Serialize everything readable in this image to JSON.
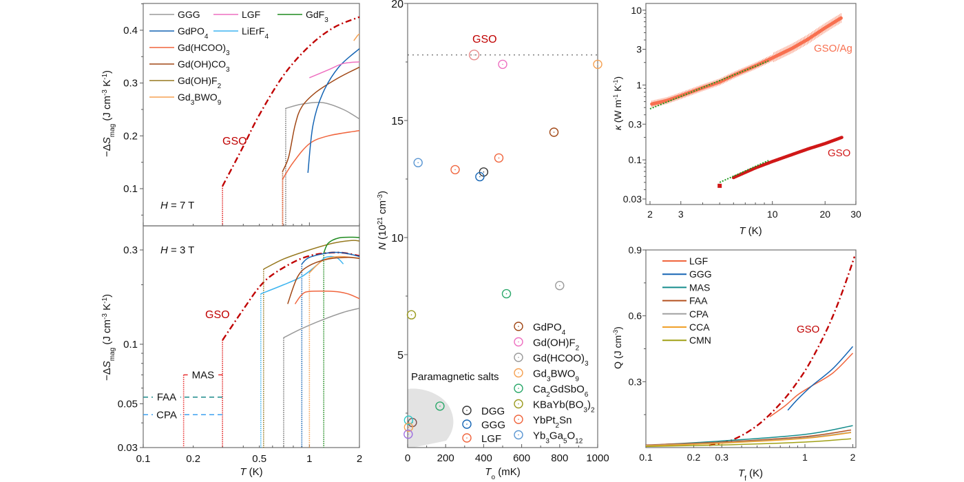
{
  "chart_data": [
    {
      "id": "entropy-7T",
      "type": "line",
      "title": "",
      "annotation": "H = 7 T",
      "xlabel": "T (K)",
      "ylabel": "-ΔS_mag (J cm^-3 K^-1)",
      "xscale": "log",
      "yscale": "linear",
      "xlim": [
        0.1,
        2
      ],
      "ylim": [
        0.03,
        0.45
      ],
      "yticks": [
        0.1,
        0.2,
        0.3,
        0.4
      ],
      "legend_position": "top-left",
      "legend": [
        {
          "name": "GGG",
          "color": "#999999"
        },
        {
          "name": "LGF",
          "color": "#ee6ec0"
        },
        {
          "name": "GdF3",
          "color": "#1e8a1e"
        },
        {
          "name": "GdPO4",
          "color": "#1464b4"
        },
        {
          "name": "LiErF4",
          "color": "#3cb4f0"
        },
        {
          "name": "Gd(HCOO)3",
          "color": "#f0643c"
        },
        {
          "name": "Gd(OH)CO3",
          "color": "#a04614"
        },
        {
          "name": "Gd(OH)F2",
          "color": "#96781e"
        },
        {
          "name": "Gd3BWO9",
          "color": "#f5a050"
        }
      ],
      "series": [
        {
          "name": "GSO",
          "color": "#c00000",
          "style": "dashdot",
          "x": [
            0.3,
            0.4,
            0.5,
            0.7,
            1.0,
            1.4,
            2.0
          ],
          "y": [
            0.105,
            0.18,
            0.24,
            0.315,
            0.37,
            0.405,
            0.425
          ],
          "cutoff_x": 0.3
        },
        {
          "name": "GGG",
          "color": "#999999",
          "style": "solid",
          "x": [
            0.72,
            0.9,
            1.2,
            1.6,
            2.0
          ],
          "y": [
            0.252,
            0.26,
            0.263,
            0.25,
            0.232
          ],
          "cutoff_x": 0.72
        },
        {
          "name": "Gd(OH)CO3",
          "color": "#a04614",
          "style": "solid",
          "x": [
            0.69,
            0.75,
            0.82,
            0.9,
            1.1,
            1.5,
            2.0
          ],
          "y": [
            0.133,
            0.16,
            0.22,
            0.255,
            0.283,
            0.31,
            0.33
          ],
          "cutoff_x": 0.69
        },
        {
          "name": "Gd(HCOO)3",
          "color": "#f0643c",
          "style": "solid",
          "x": [
            0.69,
            0.8,
            1.0,
            1.3,
            2.0
          ],
          "y": [
            0.118,
            0.15,
            0.185,
            0.2,
            0.21
          ],
          "cutoff_x": 0.69
        },
        {
          "name": "GdPO4",
          "color": "#1464b4",
          "style": "solid",
          "x": [
            0.98,
            1.05,
            1.2,
            1.5,
            2.0
          ],
          "y": [
            0.13,
            0.22,
            0.28,
            0.33,
            0.365
          ]
        },
        {
          "name": "LGF",
          "color": "#ee6ec0",
          "style": "solid",
          "x": [
            1.0,
            1.3,
            1.6,
            2.0
          ],
          "y": [
            0.31,
            0.325,
            0.337,
            0.34
          ]
        },
        {
          "name": "Gd3BWO9",
          "color": "#f5a050",
          "style": "solid",
          "x": [
            1.85,
            1.95,
            2.0
          ],
          "y": [
            0.38,
            0.39,
            0.393
          ]
        }
      ],
      "labels": [
        {
          "text": "GSO",
          "x": 0.2,
          "y": 0.19,
          "color": "#c00000"
        }
      ]
    },
    {
      "id": "entropy-3T",
      "type": "line",
      "annotation": "H = 3 T",
      "xlabel": "T (K)",
      "ylabel": "-ΔS_mag (J cm^-3 K^-1)",
      "xscale": "log",
      "yscale": "log",
      "xlim": [
        0.1,
        2
      ],
      "ylim": [
        0.03,
        0.36
      ],
      "xticks": [
        0.1,
        0.2,
        0.5,
        1,
        2
      ],
      "xticklabels": [
        "0.1",
        "0.2",
        "0.5",
        "1",
        "2"
      ],
      "yticks": [
        0.03,
        0.05,
        0.1,
        0.3
      ],
      "yticklabels": [
        "0.03",
        "0.05",
        "0.1",
        "0.3"
      ],
      "series": [
        {
          "name": "GSO",
          "color": "#c00000",
          "style": "dashdot",
          "x": [
            0.3,
            0.4,
            0.5,
            0.6,
            0.8,
            1.0,
            1.3,
            1.6,
            2.0
          ],
          "y": [
            0.105,
            0.15,
            0.195,
            0.225,
            0.26,
            0.28,
            0.29,
            0.29,
            0.28
          ],
          "cutoff_x": 0.3
        },
        {
          "name": "Gd(OH)F2",
          "color": "#96781e",
          "style": "solid",
          "x": [
            0.53,
            0.7,
            1.0,
            1.4,
            1.8,
            2.0
          ],
          "y": [
            0.24,
            0.27,
            0.3,
            0.325,
            0.335,
            0.333
          ],
          "cutoff_x": 0.53
        },
        {
          "name": "GdF3",
          "color": "#1e8a1e",
          "style": "solid",
          "x": [
            1.22,
            1.3,
            1.5,
            1.8,
            2.0
          ],
          "y": [
            0.29,
            0.325,
            0.345,
            0.348,
            0.347
          ],
          "cutoff_x": 1.22
        },
        {
          "name": "GdPO4",
          "color": "#1464b4",
          "style": "solid",
          "x": [
            0.9,
            1.0,
            1.3,
            1.6,
            2.0
          ],
          "y": [
            0.255,
            0.275,
            0.29,
            0.29,
            0.278
          ],
          "cutoff_x": 0.9
        },
        {
          "name": "LiErF4",
          "color": "#3cb4f0",
          "style": "solid",
          "x": [
            0.51,
            0.7,
            0.9,
            1.1,
            1.25,
            1.45,
            1.6
          ],
          "y": [
            0.18,
            0.2,
            0.22,
            0.25,
            0.275,
            0.275,
            0.255
          ],
          "cutoff_x": 0.51
        },
        {
          "name": "Gd3BWO9",
          "color": "#f5a050",
          "style": "solid",
          "x": [
            1.0,
            1.2,
            1.5,
            2.0
          ],
          "y": [
            0.23,
            0.265,
            0.278,
            0.272
          ],
          "cutoff_x": 1.0
        },
        {
          "name": "Gd(OH)CO3",
          "color": "#a04614",
          "style": "solid",
          "x": [
            0.74,
            0.85,
            1.0,
            1.3,
            1.7,
            2.0
          ],
          "y": [
            0.16,
            0.22,
            0.25,
            0.27,
            0.275,
            0.272
          ]
        },
        {
          "name": "Gd(HCOO)3",
          "color": "#f0643c",
          "style": "solid",
          "x": [
            0.82,
            0.9,
            1.0,
            1.4,
            1.7,
            2.0
          ],
          "y": [
            0.16,
            0.178,
            0.185,
            0.185,
            0.18,
            0.17
          ]
        },
        {
          "name": "GGG",
          "color": "#999999",
          "style": "solid",
          "x": [
            0.7,
            0.9,
            1.2,
            1.6,
            2.0
          ],
          "y": [
            0.108,
            0.12,
            0.133,
            0.145,
            0.152
          ],
          "cutoff_x": 0.7
        }
      ],
      "reference_lines": [
        {
          "name": "MAS",
          "color": "#e83030",
          "style": "dotted",
          "x_from": 0.175,
          "x_to": 0.3,
          "y": 0.07
        },
        {
          "name": "FAA",
          "color": "#1a8a8a",
          "style": "dashed",
          "x_from": 0.1,
          "x_to": 0.3,
          "y": 0.054
        },
        {
          "name": "CPA",
          "color": "#3ca0f0",
          "style": "dashed",
          "x_from": 0.1,
          "x_to": 0.3,
          "y": 0.044
        }
      ],
      "labels": [
        {
          "text": "GSO",
          "color": "#c00000"
        },
        {
          "text": "MAS"
        },
        {
          "text": "FAA"
        },
        {
          "text": "CPA"
        }
      ]
    },
    {
      "id": "density-vs-order",
      "type": "scatter",
      "xlabel": "T_o (mK)",
      "ylabel": "N (10^21 cm^-3)",
      "xlim": [
        0,
        1000
      ],
      "ylim": [
        1,
        20
      ],
      "xticks": [
        0,
        200,
        400,
        600,
        800,
        1000
      ],
      "yticks": [
        5,
        10,
        15,
        20
      ],
      "reference_line": {
        "name": "GSO",
        "y": 17.8,
        "style": "dotted"
      },
      "region_label": "Paramagnetic salts",
      "legend_position": "bottom-right",
      "points": [
        {
          "name": "GSO",
          "x": 350,
          "y": 17.8,
          "color": "#e88a8a",
          "big": true
        },
        {
          "name": "Gd(OH)F2",
          "x": 500,
          "y": 17.4,
          "color": "#ee6ec0"
        },
        {
          "name": "Gd3BWO9",
          "x": 1000,
          "y": 17.4,
          "color": "#f5a050"
        },
        {
          "name": "GdPO4",
          "x": 770,
          "y": 14.5,
          "color": "#a04614"
        },
        {
          "name": "YbPt2Sn",
          "x": 480,
          "y": 13.4,
          "color": "#f0643c"
        },
        {
          "name": "Yb3Ga5O12",
          "x": 55,
          "y": 13.2,
          "color": "#5a96d2"
        },
        {
          "name": "LGF",
          "x": 250,
          "y": 12.9,
          "color": "#f0643c"
        },
        {
          "name": "DGG",
          "x": 400,
          "y": 12.8,
          "color": "#333333"
        },
        {
          "name": "GGG",
          "x": 380,
          "y": 12.6,
          "color": "#1464b4"
        },
        {
          "name": "Gd(HCOO)3",
          "x": 800,
          "y": 7.95,
          "color": "#999999"
        },
        {
          "name": "Ca2GdSbO6",
          "x": 520,
          "y": 7.6,
          "color": "#2aa86a"
        },
        {
          "name": "KBaYb(BO3)2",
          "x": 20,
          "y": 6.7,
          "color": "#9a9a1e"
        },
        {
          "name": "Ca2GdSbO6",
          "x": 170,
          "y": 2.8,
          "color": "#2aa86a"
        },
        {
          "name": "DGG",
          "x": 25,
          "y": 2.1,
          "color": "#7a5050"
        },
        {
          "name": "cyan-salt",
          "x": 5,
          "y": 2.2,
          "color": "#2ac8c8"
        },
        {
          "name": "orange-salt",
          "x": 5,
          "y": 1.9,
          "color": "#f5a050"
        },
        {
          "name": "violet-salt",
          "x": 3,
          "y": 1.6,
          "color": "#a070e0"
        }
      ],
      "legend_left": [
        {
          "name": "DGG",
          "color": "#333333"
        },
        {
          "name": "GGG",
          "color": "#1464b4"
        },
        {
          "name": "LGF",
          "color": "#f0643c"
        }
      ],
      "legend_right": [
        {
          "name": "GdPO4",
          "color": "#a04614"
        },
        {
          "name": "Gd(OH)F2",
          "color": "#ee6ec0"
        },
        {
          "name": "Gd(HCOO)3",
          "color": "#999999"
        },
        {
          "name": "Gd3BWO9",
          "color": "#f5a050"
        },
        {
          "name": "Ca2GdSbO6",
          "color": "#2aa86a"
        },
        {
          "name": "KBaYb(BO3)2",
          "color": "#9a9a1e"
        },
        {
          "name": "YbPt2Sn",
          "color": "#f0643c"
        },
        {
          "name": "Yb3Ga5O12",
          "color": "#5a96d2"
        }
      ],
      "gso_label": "GSO"
    },
    {
      "id": "thermal-conductivity",
      "type": "line",
      "xlabel": "T (K)",
      "ylabel": "κ (W m^-1 K^-1)",
      "xscale": "log",
      "yscale": "log",
      "xlim": [
        2,
        30
      ],
      "ylim": [
        0.025,
        12
      ],
      "xticks": [
        2,
        3,
        10,
        20,
        30
      ],
      "yticks": [
        0.03,
        0.1,
        0.3,
        1,
        3,
        10
      ],
      "series": [
        {
          "name": "GSO/Ag",
          "color": "#f87050",
          "x": [
            2.0,
            2.5,
            3,
            4,
            5,
            6,
            8,
            10,
            13,
            16,
            20,
            25
          ],
          "y": [
            0.55,
            0.62,
            0.72,
            0.92,
            1.1,
            1.35,
            1.8,
            2.3,
            3.1,
            4.1,
            5.8,
            8.0
          ]
        },
        {
          "name": "GSO",
          "color": "#d01818",
          "x": [
            5,
            6,
            7,
            8,
            10,
            13,
            16,
            20,
            25
          ],
          "y": [
            0.045,
            0.058,
            0.068,
            0.078,
            0.095,
            0.118,
            0.14,
            0.165,
            0.2
          ]
        },
        {
          "name": "fit-GSO/Ag",
          "color": "#1e9a1e",
          "style": "dotted",
          "x": [
            2.0,
            9.5
          ],
          "y": [
            0.48,
            2.1
          ]
        },
        {
          "name": "fit-GSO",
          "color": "#1e9a1e",
          "style": "dotted",
          "x": [
            5,
            9.5
          ],
          "y": [
            0.05,
            0.098
          ]
        }
      ],
      "labels": [
        {
          "text": "GSO/Ag",
          "color": "#f87050"
        },
        {
          "text": "GSO",
          "color": "#d01818"
        }
      ]
    },
    {
      "id": "cooling-capacity",
      "type": "line",
      "xlabel": "T_f (K)",
      "ylabel": "Q (J cm^-3)",
      "xscale": "log",
      "yscale": "linear",
      "xlim": [
        0.1,
        2.1
      ],
      "ylim": [
        0,
        0.9
      ],
      "xticks": [
        0.1,
        0.2,
        0.3,
        1,
        2
      ],
      "yticks": [
        0.3,
        0.6,
        0.9
      ],
      "legend_position": "top-left",
      "legend": [
        {
          "name": "LGF",
          "color": "#f0643c"
        },
        {
          "name": "GGG",
          "color": "#1464b4"
        },
        {
          "name": "MAS",
          "color": "#148c8c"
        },
        {
          "name": "FAA",
          "color": "#b4501e"
        },
        {
          "name": "CPA",
          "color": "#a0a0a0"
        },
        {
          "name": "CCA",
          "color": "#f0a028"
        },
        {
          "name": "CMN",
          "color": "#a0a014"
        }
      ],
      "series": [
        {
          "name": "GSO",
          "color": "#c00000",
          "style": "dashdot",
          "x": [
            0.25,
            0.35,
            0.5,
            0.7,
            0.9,
            1.1,
            1.4,
            1.7,
            2.05
          ],
          "y": [
            0.01,
            0.035,
            0.1,
            0.2,
            0.3,
            0.4,
            0.55,
            0.7,
            0.87
          ]
        },
        {
          "name": "LGF",
          "color": "#f0643c",
          "x": [
            0.6,
            0.75,
            0.9,
            1.1,
            1.5,
            2.0
          ],
          "y": [
            0.14,
            0.19,
            0.24,
            0.28,
            0.34,
            0.43
          ]
        },
        {
          "name": "GGG",
          "color": "#1464b4",
          "x": [
            0.78,
            0.9,
            1.1,
            1.5,
            2.0
          ],
          "y": [
            0.17,
            0.22,
            0.28,
            0.36,
            0.46
          ]
        },
        {
          "name": "MAS",
          "color": "#148c8c",
          "x": [
            0.1,
            0.3,
            1.0,
            2.0
          ],
          "y": [
            0.01,
            0.03,
            0.06,
            0.1
          ]
        },
        {
          "name": "FAA",
          "color": "#b4501e",
          "x": [
            0.1,
            0.3,
            1.0,
            1.95
          ],
          "y": [
            0.012,
            0.025,
            0.05,
            0.08
          ]
        },
        {
          "name": "CPA",
          "color": "#a0a0a0",
          "x": [
            0.1,
            0.3,
            1.0,
            1.95
          ],
          "y": [
            0.01,
            0.022,
            0.045,
            0.07
          ]
        },
        {
          "name": "CCA",
          "color": "#f0a028",
          "x": [
            0.1,
            0.3,
            1.0,
            1.95
          ],
          "y": [
            0.008,
            0.02,
            0.042,
            0.068
          ]
        },
        {
          "name": "CMN",
          "color": "#a0a014",
          "x": [
            0.1,
            0.3,
            1.0,
            1.95
          ],
          "y": [
            0.005,
            0.012,
            0.025,
            0.04
          ]
        }
      ],
      "labels": [
        {
          "text": "GSO",
          "color": "#c00000"
        }
      ]
    }
  ]
}
